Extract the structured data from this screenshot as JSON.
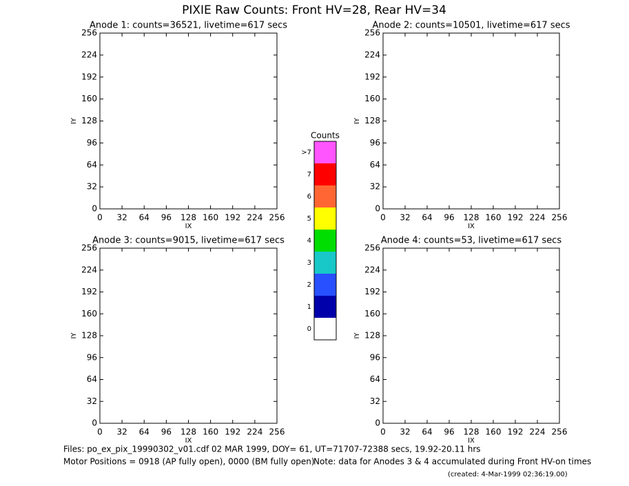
{
  "title": "PIXIE Raw Counts:  Front HV=28, Rear HV=34",
  "chart_data": [
    {
      "type": "heatmap",
      "title": "Anode 1: counts=36521, livetime=617 secs",
      "x_label": "IX",
      "y_label": "IY",
      "xlim": [
        0,
        256
      ],
      "ylim": [
        0,
        256
      ],
      "xticks": [
        0,
        32,
        64,
        96,
        128,
        160,
        192,
        224,
        256
      ],
      "yticks": [
        0,
        32,
        64,
        96,
        128,
        160,
        192,
        224,
        256
      ]
    },
    {
      "type": "heatmap",
      "title": "Anode 2: counts=10501, livetime=617 secs",
      "x_label": "IX",
      "y_label": "IY",
      "xlim": [
        0,
        256
      ],
      "ylim": [
        0,
        256
      ],
      "xticks": [
        0,
        32,
        64,
        96,
        128,
        160,
        192,
        224,
        256
      ],
      "yticks": [
        0,
        32,
        64,
        96,
        128,
        160,
        192,
        224,
        256
      ]
    },
    {
      "type": "heatmap",
      "title": "Anode 3: counts=9015, livetime=617 secs",
      "x_label": "IX",
      "y_label": "IY",
      "xlim": [
        0,
        256
      ],
      "ylim": [
        0,
        256
      ],
      "xticks": [
        0,
        32,
        64,
        96,
        128,
        160,
        192,
        224,
        256
      ],
      "yticks": [
        0,
        32,
        64,
        96,
        128,
        160,
        192,
        224,
        256
      ]
    },
    {
      "type": "heatmap",
      "title": "Anode 4: counts=53, livetime=617 secs",
      "x_label": "IX",
      "y_label": "IY",
      "xlim": [
        0,
        256
      ],
      "ylim": [
        0,
        256
      ],
      "xticks": [
        0,
        32,
        64,
        96,
        128,
        160,
        192,
        224,
        256
      ],
      "yticks": [
        0,
        32,
        64,
        96,
        128,
        160,
        192,
        224,
        256
      ]
    }
  ],
  "colorbar": {
    "title": "Counts",
    "labels": [
      ">7",
      7,
      6,
      5,
      4,
      3,
      2,
      1,
      0
    ],
    "colors": [
      "#ff55ff",
      "#ff0000",
      "#ff6633",
      "#ffff00",
      "#00dd00",
      "#18c8c8",
      "#2850ff",
      "#0000aa",
      "#ffffff"
    ]
  },
  "footer": {
    "files": "Files: po_ex_pix_19990302_v01.cdf    02 MAR 1999, DOY= 61, UT=71707-72388 secs, 19.92-20.11 hrs",
    "motor": "Motor Positions = 0918 (AP fully open), 0000 (BM fully open)",
    "note": "Note: data for Anodes 3 & 4 accumulated during Front HV-on times",
    "created": "(created:  4-Mar-1999 02:36:19.00)"
  }
}
